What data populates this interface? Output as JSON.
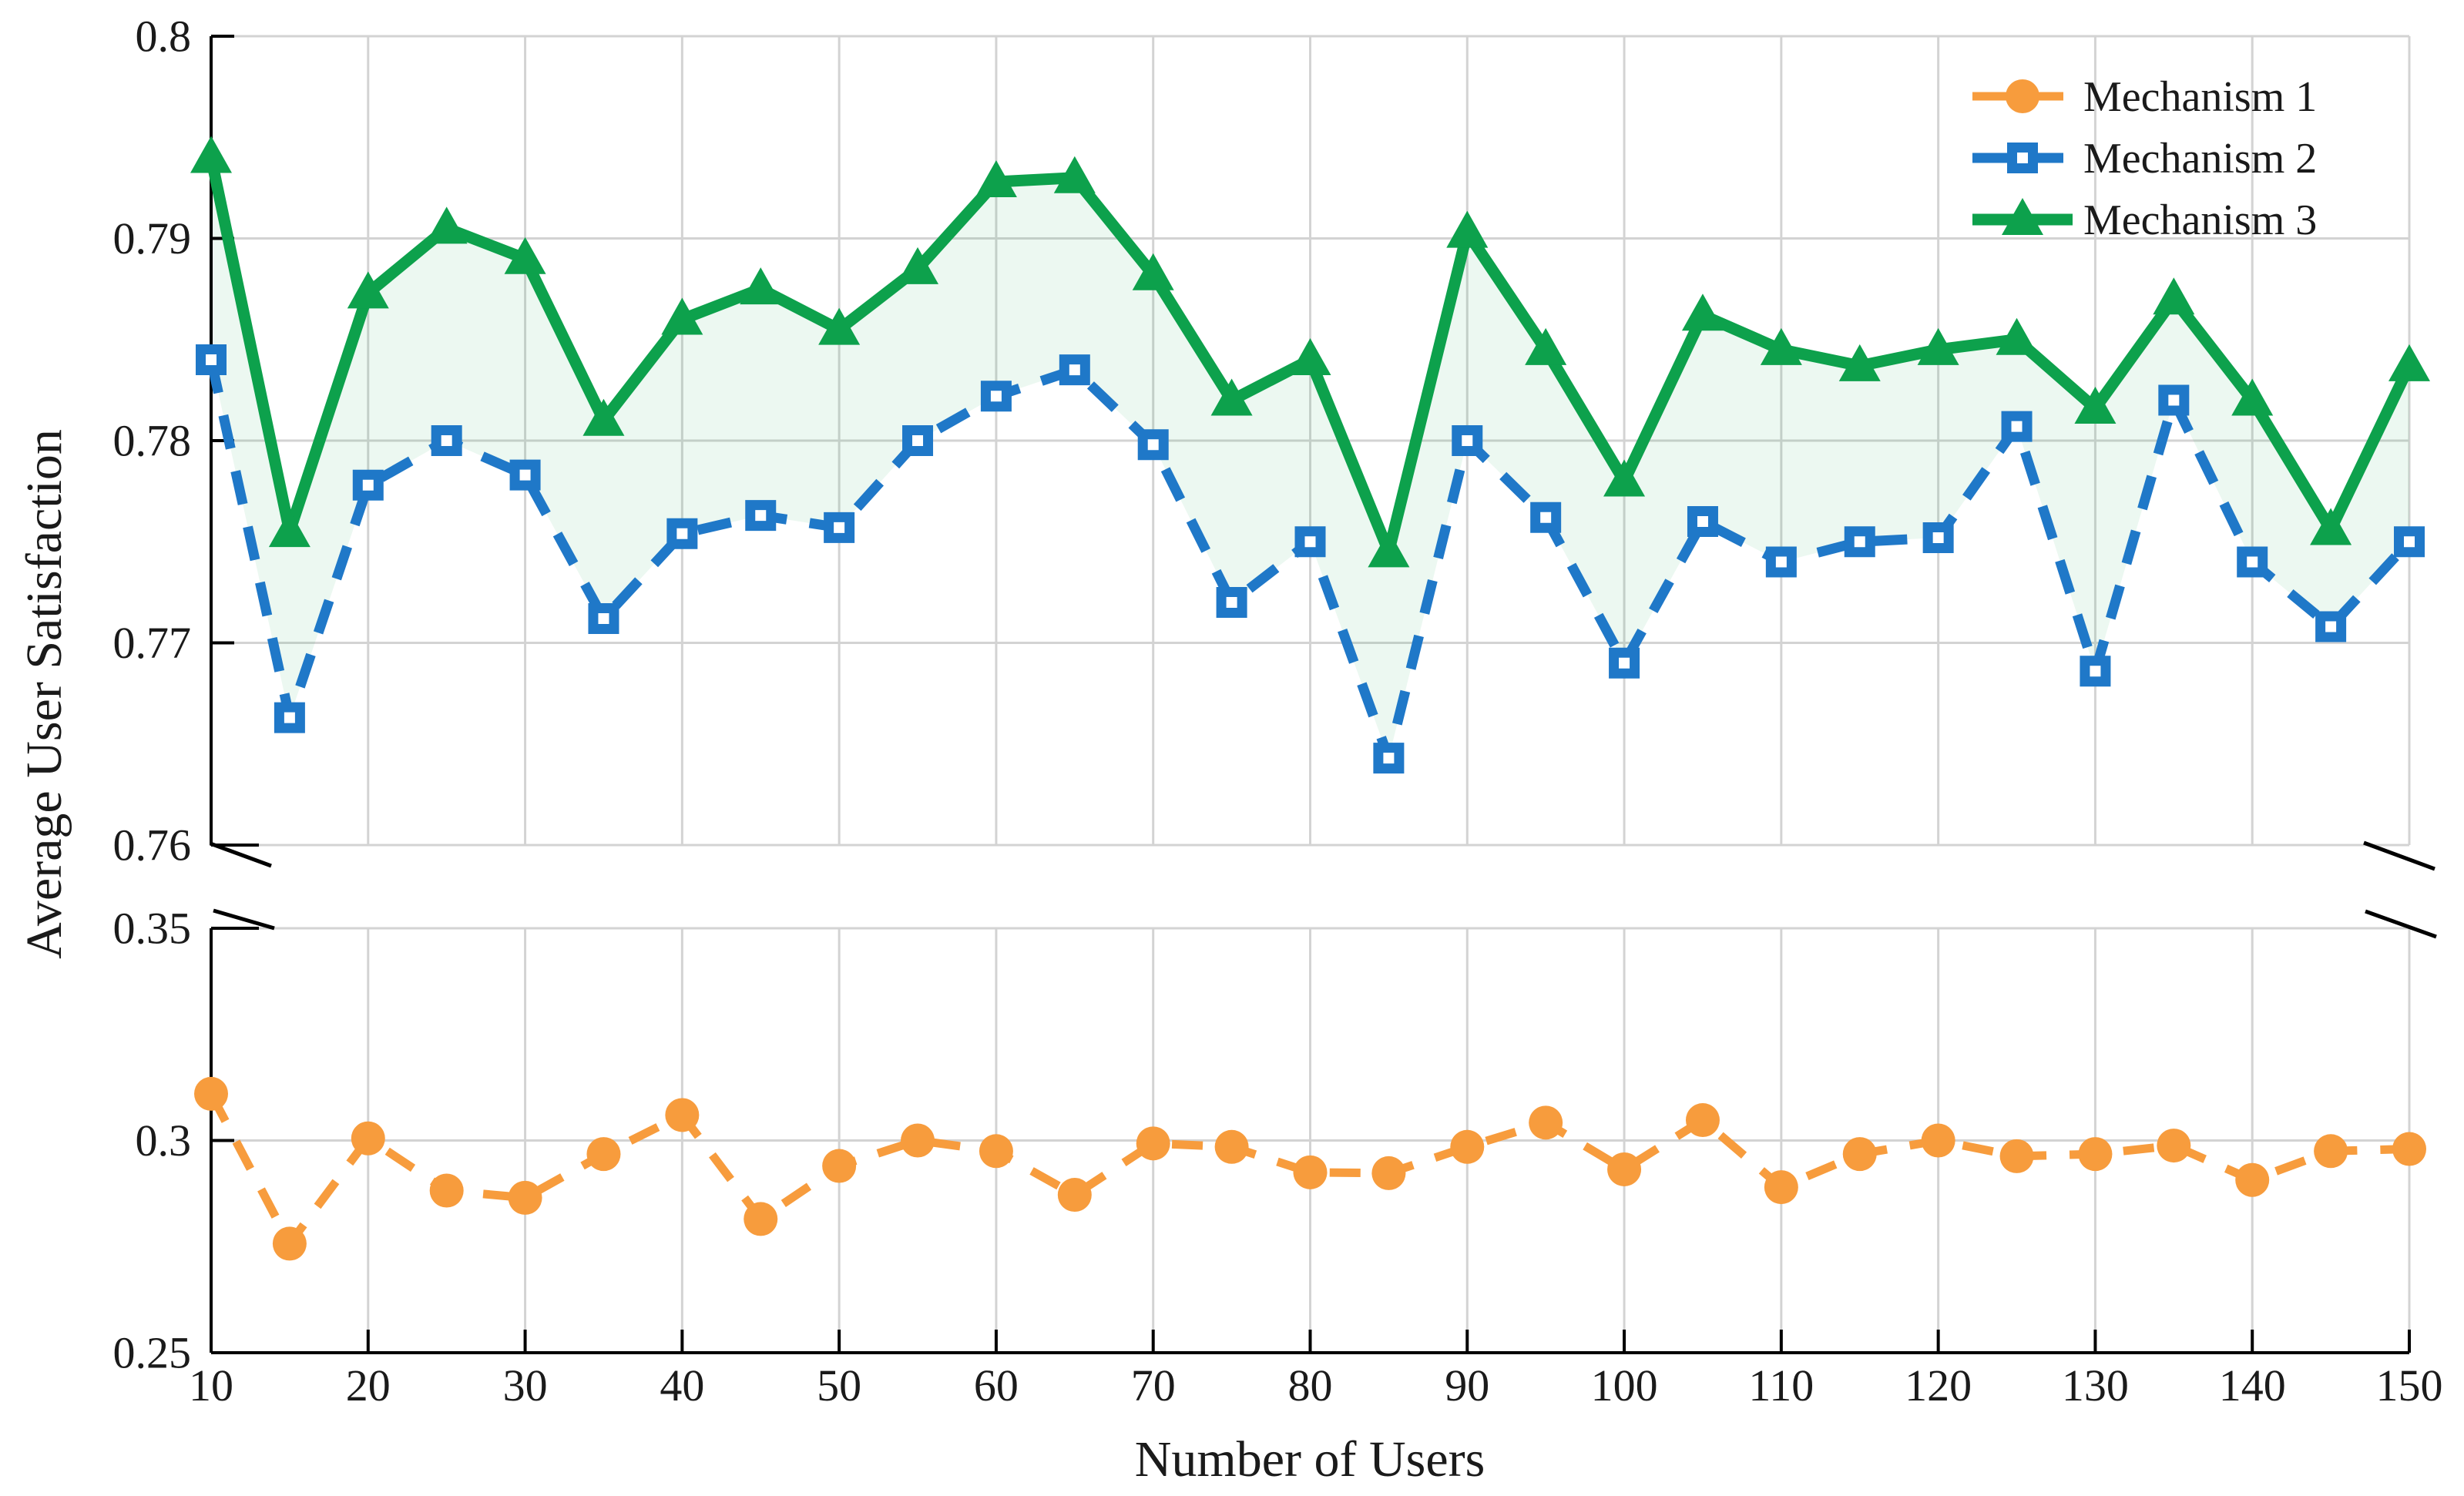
{
  "figure": {
    "x_axis_title": "Number of Users",
    "y_axis_title": "Average User Satisfaction"
  },
  "chart_data": {
    "type": "line",
    "title": "",
    "xlabel": "Number of Users",
    "ylabel": "Average User Satisfaction",
    "broken_y_axis": true,
    "grid": true,
    "grid_color": "#D3D3D3",
    "text_color": "#1A1A1A",
    "x": [
      10,
      15,
      20,
      25,
      30,
      35,
      40,
      45,
      50,
      55,
      60,
      65,
      70,
      75,
      80,
      85,
      90,
      95,
      100,
      105,
      110,
      115,
      120,
      125,
      130,
      135,
      140,
      145,
      150
    ],
    "series": [
      {
        "name": "Mechanism 1",
        "panel": "bottom",
        "color": "#F79C3D",
        "line_style": "dashed",
        "marker": "filled-circle",
        "values": [
          0.311,
          0.2757,
          0.3005,
          0.2882,
          0.2865,
          0.2968,
          0.306,
          0.2815,
          0.294,
          0.3,
          0.2975,
          0.2872,
          0.2993,
          0.2985,
          0.2925,
          0.2923,
          0.2985,
          0.3042,
          0.2932,
          0.3048,
          0.289,
          0.2968,
          0.3,
          0.2963,
          0.2968,
          0.2988,
          0.2907,
          0.2975,
          0.298
        ]
      },
      {
        "name": "Mechanism 2",
        "panel": "top",
        "color": "#1F78C8",
        "line_style": "dashed",
        "marker": "open-square",
        "values": [
          0.784,
          0.7663,
          0.7778,
          0.78,
          0.7783,
          0.7712,
          0.7754,
          0.7763,
          0.7757,
          0.78,
          0.7822,
          0.7835,
          0.7798,
          0.772,
          0.775,
          0.7643,
          0.78,
          0.7762,
          0.769,
          0.776,
          0.774,
          0.775,
          0.7752,
          0.7807,
          0.7686,
          0.782,
          0.774,
          0.7708,
          0.775
        ]
      },
      {
        "name": "Mechanism 3",
        "panel": "top",
        "color": "#0DA14C",
        "line_style": "solid",
        "marker": "filled-triangle",
        "values": [
          0.794,
          0.7755,
          0.7873,
          0.7905,
          0.789,
          0.781,
          0.786,
          0.7875,
          0.7855,
          0.7885,
          0.7928,
          0.793,
          0.7882,
          0.782,
          0.784,
          0.7745,
          0.7903,
          0.7845,
          0.778,
          0.7862,
          0.7845,
          0.7837,
          0.7845,
          0.785,
          0.7816,
          0.787,
          0.782,
          0.7756,
          0.7837
        ]
      }
    ],
    "fill_between": {
      "upper": "Mechanism 3",
      "lower": "Mechanism 2",
      "color": "#0DA14C",
      "opacity": 0.08
    },
    "panels": {
      "top": {
        "ylim": [
          0.76,
          0.8
        ],
        "yticks": [
          {
            "v": 0.8,
            "label": "0.8"
          },
          {
            "v": 0.79,
            "label": "0.79"
          },
          {
            "v": 0.78,
            "label": "0.78"
          },
          {
            "v": 0.77,
            "label": "0.77"
          },
          {
            "v": 0.76,
            "label": "0.76"
          }
        ]
      },
      "bottom": {
        "ylim": [
          0.25,
          0.35
        ],
        "yticks": [
          {
            "v": 0.35,
            "label": "0.35"
          },
          {
            "v": 0.3,
            "label": "0.3"
          },
          {
            "v": 0.25,
            "label": "0.25"
          }
        ]
      }
    },
    "x_axis": {
      "lim": [
        10,
        150
      ],
      "ticks": [
        {
          "v": 10,
          "label": "10"
        },
        {
          "v": 20,
          "label": "20"
        },
        {
          "v": 30,
          "label": "30"
        },
        {
          "v": 40,
          "label": "40"
        },
        {
          "v": 50,
          "label": "50"
        },
        {
          "v": 60,
          "label": "60"
        },
        {
          "v": 70,
          "label": "70"
        },
        {
          "v": 80,
          "label": "80"
        },
        {
          "v": 90,
          "label": "90"
        },
        {
          "v": 100,
          "label": "100"
        },
        {
          "v": 110,
          "label": "110"
        },
        {
          "v": 120,
          "label": "120"
        },
        {
          "v": 130,
          "label": "130"
        },
        {
          "v": 140,
          "label": "140"
        },
        {
          "v": 150,
          "label": "150"
        }
      ]
    },
    "legend": {
      "position": "top-right",
      "entries": [
        "Mechanism 1",
        "Mechanism 2",
        "Mechanism 3"
      ]
    }
  }
}
